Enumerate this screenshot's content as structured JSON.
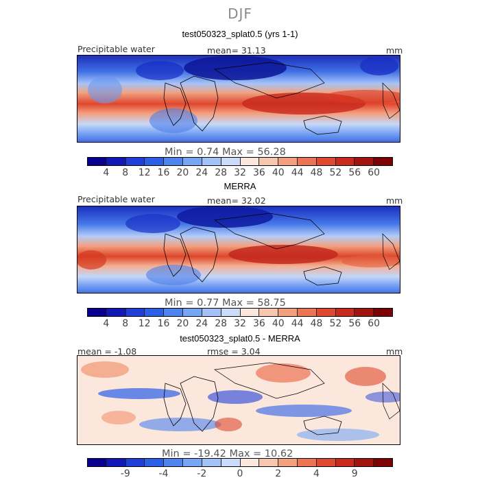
{
  "figure": {
    "title": "DJF"
  },
  "panels": [
    {
      "title": "test050323_splat0.5 (yrs 1-1)",
      "left_label": "Precipitable water",
      "center_label": "mean=  31.13",
      "units": "mm",
      "min_max": "Min =   0.74  Max =  56.28",
      "colorbar": {
        "ticks": [
          "4",
          "8",
          "12",
          "16",
          "20",
          "24",
          "28",
          "32",
          "36",
          "40",
          "44",
          "48",
          "52",
          "56",
          "60"
        ],
        "colors": [
          "#08008f",
          "#1118b8",
          "#1f3fd8",
          "#2b5fe8",
          "#4d84f0",
          "#78a6f6",
          "#a2c2f8",
          "#cbdcfa",
          "#fbe7dc",
          "#f8c5ad",
          "#f3a07f",
          "#ec7452",
          "#e0492f",
          "#c82a1c",
          "#a3140e",
          "#7d0204"
        ]
      }
    },
    {
      "title": "MERRA",
      "left_label": "Precipitable water",
      "center_label": "mean=  32.02",
      "units": "mm",
      "min_max": "Min =   0.77  Max =  58.75",
      "colorbar": {
        "ticks": [
          "4",
          "8",
          "12",
          "16",
          "20",
          "24",
          "28",
          "32",
          "36",
          "40",
          "44",
          "48",
          "52",
          "56",
          "60"
        ],
        "colors": [
          "#08008f",
          "#1118b8",
          "#1f3fd8",
          "#2b5fe8",
          "#4d84f0",
          "#78a6f6",
          "#a2c2f8",
          "#cbdcfa",
          "#fbe7dc",
          "#f8c5ad",
          "#f3a07f",
          "#ec7452",
          "#e0492f",
          "#c82a1c",
          "#a3140e",
          "#7d0204"
        ]
      }
    },
    {
      "title": "test050323_splat0.5 - MERRA",
      "left_label": "mean =  -1.08",
      "center_label": "rmse =   3.04",
      "units": "mm",
      "min_max": "Min = -19.42  Max =  10.62",
      "colorbar": {
        "ticks": [
          "-9",
          "-4",
          "-2",
          "0",
          "2",
          "4",
          "9"
        ],
        "tick_positions": [
          2,
          4,
          6,
          8,
          10,
          12,
          14
        ],
        "colors": [
          "#08008f",
          "#1118b8",
          "#1f3fd8",
          "#2b5fe8",
          "#4d84f0",
          "#78a6f6",
          "#a2c2f8",
          "#cbdcfa",
          "#fbe7dc",
          "#f8c5ad",
          "#f3a07f",
          "#ec7452",
          "#e0492f",
          "#c82a1c",
          "#a3140e",
          "#7d0204"
        ]
      }
    }
  ]
}
